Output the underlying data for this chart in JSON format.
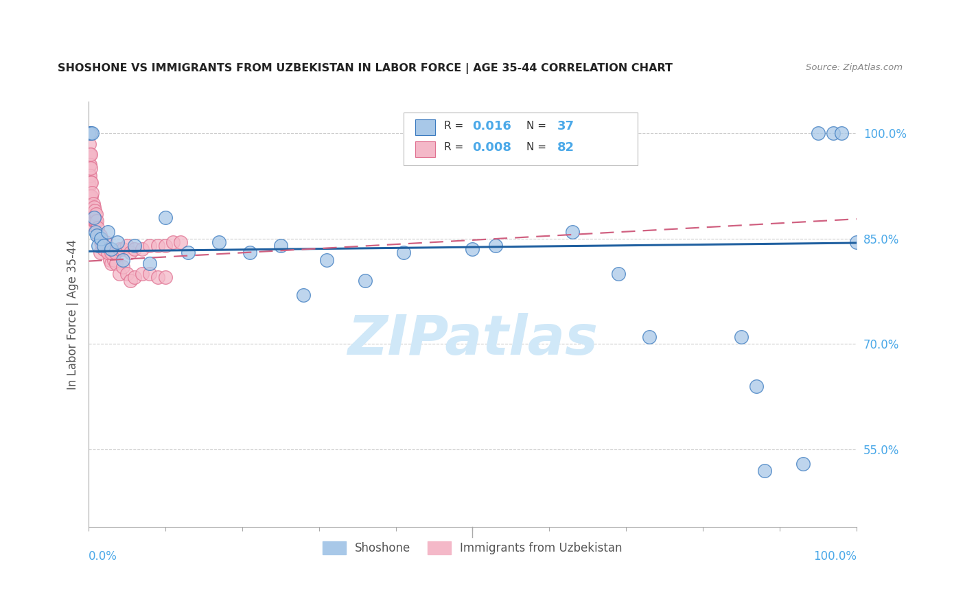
{
  "title": "SHOSHONE VS IMMIGRANTS FROM UZBEKISTAN IN LABOR FORCE | AGE 35-44 CORRELATION CHART",
  "source": "Source: ZipAtlas.com",
  "ylabel": "In Labor Force | Age 35-44",
  "ytick_labels": [
    "55.0%",
    "70.0%",
    "85.0%",
    "100.0%"
  ],
  "ytick_values": [
    0.55,
    0.7,
    0.85,
    1.0
  ],
  "xlim": [
    0.0,
    1.0
  ],
  "ylim": [
    0.44,
    1.045
  ],
  "legend_label1": "Shoshone",
  "legend_label2": "Immigrants from Uzbekistan",
  "R1": "0.016",
  "N1": "37",
  "R2": "0.008",
  "N2": "82",
  "color_blue": "#a8c8e8",
  "color_pink": "#f4b8c8",
  "color_blue_edge": "#3a7abf",
  "color_pink_edge": "#e07090",
  "color_blue_line": "#2060a0",
  "color_pink_line": "#d06080",
  "color_right_axis": "#4aa8e8",
  "watermark_color": "#d0e8f8",
  "blue_trend_x": [
    0.0,
    1.0
  ],
  "blue_trend_y": [
    0.832,
    0.844
  ],
  "pink_trend_x": [
    0.0,
    1.0
  ],
  "pink_trend_y": [
    0.818,
    0.878
  ],
  "blue_x": [
    0.0,
    0.003,
    0.005,
    0.007,
    0.009,
    0.011,
    0.013,
    0.016,
    0.02,
    0.025,
    0.03,
    0.038,
    0.045,
    0.06,
    0.08,
    0.1,
    0.13,
    0.17,
    0.21,
    0.25,
    0.28,
    0.31,
    0.36,
    0.41,
    0.5,
    0.53,
    0.63,
    0.69,
    0.73,
    0.85,
    0.87,
    0.88,
    0.93,
    0.95,
    0.97,
    0.98,
    1.0
  ],
  "blue_y": [
    1.0,
    1.0,
    1.0,
    0.88,
    0.86,
    0.855,
    0.84,
    0.85,
    0.84,
    0.86,
    0.835,
    0.845,
    0.82,
    0.84,
    0.815,
    0.88,
    0.83,
    0.845,
    0.83,
    0.84,
    0.77,
    0.82,
    0.79,
    0.83,
    0.835,
    0.84,
    0.86,
    0.8,
    0.71,
    0.71,
    0.64,
    0.52,
    0.53,
    1.0,
    1.0,
    1.0,
    0.845
  ],
  "pink_x": [
    0.0,
    0.0,
    0.0,
    0.0,
    0.0,
    0.0,
    0.0,
    0.0,
    0.0,
    0.0,
    0.0,
    0.001,
    0.001,
    0.001,
    0.001,
    0.001,
    0.001,
    0.001,
    0.001,
    0.002,
    0.002,
    0.002,
    0.002,
    0.002,
    0.002,
    0.003,
    0.003,
    0.003,
    0.003,
    0.003,
    0.004,
    0.004,
    0.004,
    0.005,
    0.005,
    0.005,
    0.006,
    0.006,
    0.007,
    0.007,
    0.008,
    0.008,
    0.009,
    0.01,
    0.011,
    0.012,
    0.013,
    0.015,
    0.016,
    0.018,
    0.02,
    0.022,
    0.025,
    0.028,
    0.03,
    0.033,
    0.036,
    0.04,
    0.045,
    0.05,
    0.055,
    0.06,
    0.07,
    0.08,
    0.09,
    0.1,
    0.015,
    0.02,
    0.025,
    0.03,
    0.035,
    0.04,
    0.045,
    0.05,
    0.055,
    0.06,
    0.07,
    0.08,
    0.09,
    0.1,
    0.11,
    0.12
  ],
  "pink_y": [
    1.0,
    1.0,
    1.0,
    1.0,
    1.0,
    0.97,
    0.95,
    0.93,
    0.91,
    0.895,
    0.87,
    1.0,
    1.0,
    0.985,
    0.97,
    0.955,
    0.94,
    0.925,
    0.91,
    1.0,
    0.97,
    0.955,
    0.94,
    0.91,
    0.88,
    0.97,
    0.95,
    0.93,
    0.91,
    0.885,
    0.93,
    0.91,
    0.88,
    0.915,
    0.89,
    0.87,
    0.9,
    0.88,
    0.895,
    0.875,
    0.89,
    0.875,
    0.875,
    0.885,
    0.875,
    0.865,
    0.855,
    0.855,
    0.845,
    0.84,
    0.835,
    0.845,
    0.83,
    0.82,
    0.815,
    0.82,
    0.815,
    0.8,
    0.81,
    0.8,
    0.79,
    0.795,
    0.8,
    0.8,
    0.795,
    0.795,
    0.83,
    0.835,
    0.83,
    0.83,
    0.83,
    0.835,
    0.835,
    0.84,
    0.83,
    0.835,
    0.835,
    0.84,
    0.84,
    0.84,
    0.845,
    0.845
  ]
}
